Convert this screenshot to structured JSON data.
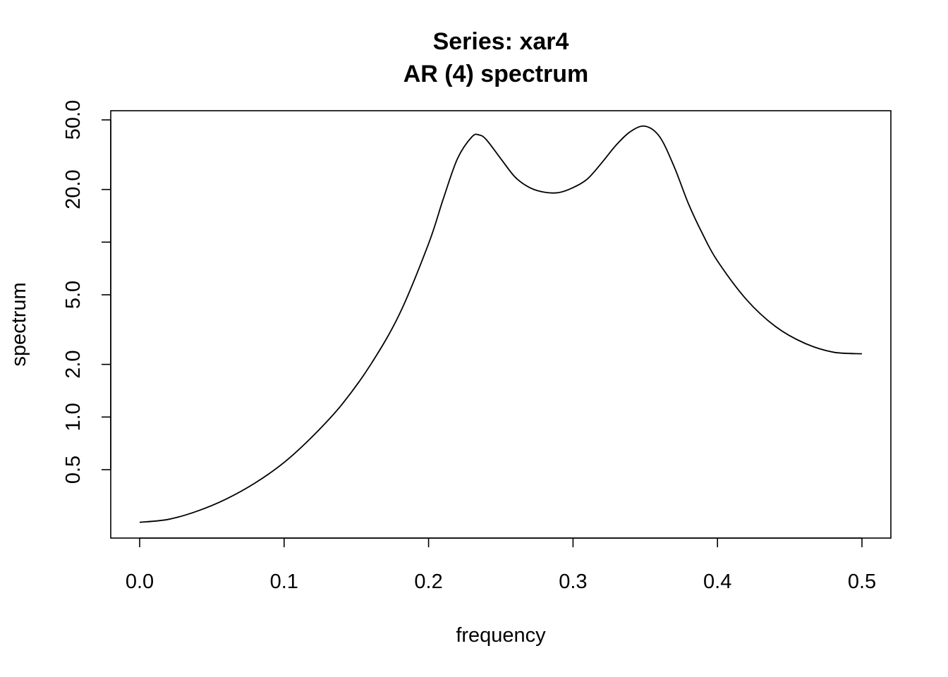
{
  "chart_data": {
    "type": "line",
    "title": "Series: xar4",
    "subtitle": "AR (4) spectrum",
    "xlabel": "frequency",
    "ylabel": "spectrum",
    "x_scale": "linear",
    "y_scale": "log",
    "xlim": [
      0.0,
      0.5
    ],
    "ylim": [
      0.18,
      60
    ],
    "x_ticks": [
      {
        "value": 0.0,
        "label": "0.0"
      },
      {
        "value": 0.1,
        "label": "0.1"
      },
      {
        "value": 0.2,
        "label": "0.2"
      },
      {
        "value": 0.3,
        "label": "0.3"
      },
      {
        "value": 0.4,
        "label": "0.4"
      },
      {
        "value": 0.5,
        "label": "0.5"
      }
    ],
    "y_ticks": [
      {
        "value": 0.5,
        "label": "0.5"
      },
      {
        "value": 1.0,
        "label": "1.0"
      },
      {
        "value": 2.0,
        "label": "2.0"
      },
      {
        "value": 5.0,
        "label": "5.0"
      },
      {
        "value": 10.0,
        "label": ""
      },
      {
        "value": 20.0,
        "label": "20.0"
      },
      {
        "value": 50.0,
        "label": "50.0"
      }
    ],
    "grid": false,
    "legend": "none",
    "line_color": "#000000",
    "series": [
      {
        "x": [
          0.0,
          0.02,
          0.04,
          0.06,
          0.08,
          0.1,
          0.12,
          0.14,
          0.16,
          0.18,
          0.2,
          0.21,
          0.22,
          0.23,
          0.235,
          0.24,
          0.25,
          0.26,
          0.27,
          0.28,
          0.29,
          0.3,
          0.31,
          0.32,
          0.33,
          0.34,
          0.35,
          0.36,
          0.37,
          0.38,
          0.39,
          0.4,
          0.42,
          0.44,
          0.46,
          0.48,
          0.5
        ],
        "values": [
          0.25,
          0.26,
          0.29,
          0.34,
          0.42,
          0.55,
          0.78,
          1.18,
          2.0,
          3.9,
          9.8,
          17.5,
          30.0,
          40.0,
          41.0,
          38.5,
          30.0,
          23.5,
          20.5,
          19.3,
          19.2,
          20.5,
          23.0,
          28.5,
          36.0,
          43.0,
          46.0,
          40.0,
          27.0,
          16.5,
          11.0,
          7.8,
          4.7,
          3.3,
          2.65,
          2.35,
          2.3
        ]
      }
    ]
  }
}
